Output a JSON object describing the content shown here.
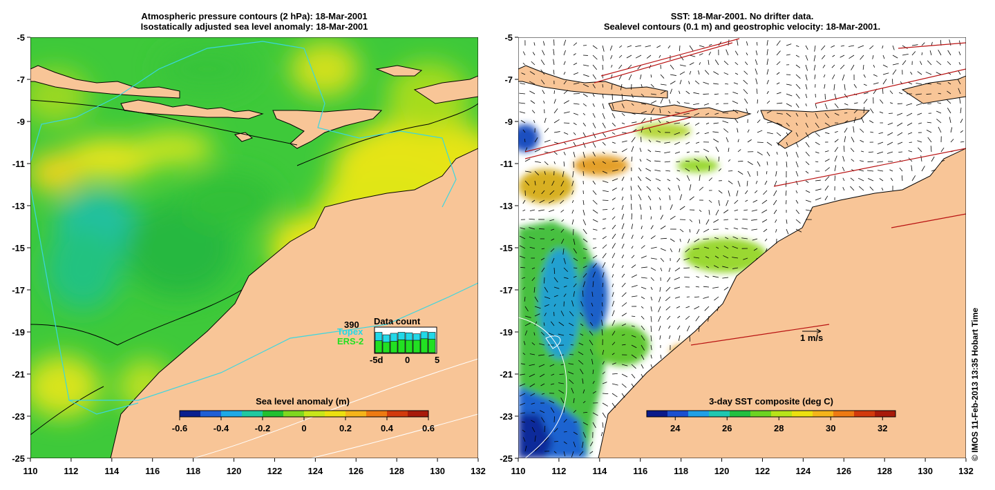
{
  "left_panel": {
    "title_line1": "Atmospheric pressure contours (2 hPa): 18-Mar-2001",
    "title_line2": "Isostatically adjusted sea level anomaly: 18-Mar-2001",
    "colorbar": {
      "label": "Sea level anomaly (m)",
      "ticks": [
        "-0.6",
        "-0.4",
        "-0.2",
        "0",
        "0.2",
        "0.4",
        "0.6"
      ],
      "colors": [
        "#0a1f8f",
        "#1f5fd6",
        "#1fa9e6",
        "#1fc9a0",
        "#22c030",
        "#7fd820",
        "#c8e61a",
        "#ece010",
        "#f5b41a",
        "#ee7a12",
        "#d23a0c",
        "#a81a0a"
      ]
    },
    "data_count": {
      "title": "Data count",
      "max_label": "390",
      "topex_label": "Topex",
      "ers_label": "ERS-2",
      "axis_labels": [
        "-5d",
        "0",
        "5"
      ],
      "topex_color": "#22d8e8",
      "ers_color": "#22e022",
      "topex": [
        0.82,
        0.72,
        0.78,
        0.82,
        0.8,
        0.76,
        0.84,
        0.82
      ],
      "ers2": [
        0.48,
        0.42,
        0.46,
        0.52,
        0.5,
        0.5,
        0.56,
        0.54
      ]
    }
  },
  "right_panel": {
    "title_line1": "SST: 18-Mar-2001. No drifter data.",
    "title_line2": "Sealevel contours (0.1 m) and geostrophic velocity: 18-Mar-2001.",
    "colorbar": {
      "label": "3-day SST composite (deg C)",
      "ticks": [
        "24",
        "26",
        "28",
        "30",
        "32"
      ],
      "colors": [
        "#0a1a8a",
        "#1a4fd0",
        "#1fa0e6",
        "#1fc8b0",
        "#22c040",
        "#6cd422",
        "#b8e41a",
        "#ece010",
        "#f5b41a",
        "#ee7a12",
        "#d23a0c",
        "#a81a0a"
      ]
    },
    "scale_label": "1 m/s"
  },
  "x_ticks": [
    "110",
    "112",
    "114",
    "116",
    "118",
    "120",
    "122",
    "124",
    "126",
    "128",
    "130",
    "132"
  ],
  "y_ticks": [
    "-5",
    "-7",
    "-9",
    "-11",
    "-13",
    "-15",
    "-17",
    "-19",
    "-21",
    "-23",
    "-25"
  ],
  "copyright": "© IMOS 11-Feb-2013 13:35 Hobart Time",
  "colors": {
    "land": "#f8c597",
    "coast": "#000000",
    "track": "#3ad6e0",
    "ocean_green": "#2fc43a",
    "ocean_yellow": "#e2e81a"
  }
}
